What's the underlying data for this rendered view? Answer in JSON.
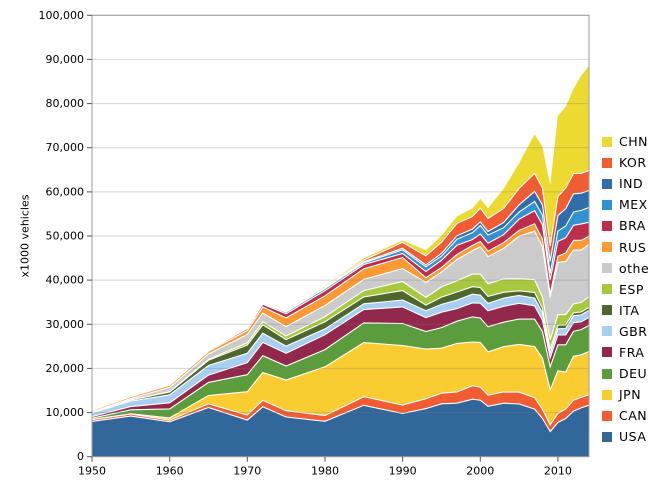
{
  "figure": {
    "background": "#ffffff"
  },
  "chart_data": {
    "type": "area",
    "stacked": true,
    "title": "",
    "xlabel": "",
    "ylabel": "x1000 vehicles",
    "xlim": [
      1950,
      2014
    ],
    "ylim": [
      0,
      100000
    ],
    "ytick_step": 10000,
    "xticks": [
      1950,
      1960,
      1970,
      1980,
      1990,
      2000,
      2010
    ],
    "grid": true,
    "legend_position": "right",
    "legend": [
      "CHN",
      "KOR",
      "IND",
      "MEX",
      "BRA",
      "RUS",
      "others",
      "ESP",
      "ITA",
      "GBR",
      "FRA",
      "DEU",
      "JPN",
      "CAN",
      "USA"
    ],
    "x": [
      1950,
      1955,
      1960,
      1965,
      1970,
      1972,
      1975,
      1980,
      1985,
      1990,
      1993,
      1995,
      1997,
      1999,
      2000,
      2001,
      2003,
      2005,
      2007,
      2008,
      2009,
      2010,
      2011,
      2012,
      2013,
      2014
    ],
    "series": [
      {
        "name": "USA",
        "color": "#31679B",
        "values": [
          8006,
          9204,
          7905,
          11138,
          8284,
          11311,
          8987,
          8010,
          11653,
          9783,
          10898,
          11985,
          12119,
          13025,
          12800,
          11425,
          12115,
          11947,
          10781,
          8672,
          5709,
          7743,
          8662,
          10336,
          11066,
          11661
        ]
      },
      {
        "name": "CAN",
        "color": "#F25C33",
        "values": [
          388,
          452,
          398,
          847,
          1160,
          1470,
          1442,
          1324,
          1933,
          1928,
          2246,
          2408,
          2571,
          3059,
          2962,
          2533,
          2553,
          2688,
          2578,
          2082,
          1490,
          2068,
          2135,
          2463,
          2380,
          2394
        ]
      },
      {
        "name": "JPN",
        "color": "#F9CD32",
        "values": [
          32,
          69,
          482,
          1876,
          5289,
          6294,
          6942,
          11043,
          12271,
          13487,
          11228,
          10196,
          10975,
          9895,
          10141,
          9777,
          10286,
          10800,
          11596,
          11576,
          7934,
          9629,
          8399,
          9943,
          9630,
          9775
        ]
      },
      {
        "name": "DEU",
        "color": "#5B9C3D",
        "values": [
          306,
          909,
          2055,
          2976,
          3842,
          3800,
          3186,
          3879,
          4446,
          4977,
          3990,
          4667,
          5023,
          5687,
          5527,
          5692,
          5507,
          5758,
          6213,
          6046,
          5210,
          5906,
          6147,
          5649,
          5718,
          5908
        ]
      },
      {
        "name": "FRA",
        "color": "#92294C",
        "values": [
          357,
          725,
          1369,
          1642,
          2750,
          3010,
          2861,
          3378,
          3016,
          3769,
          3156,
          3475,
          2858,
          3180,
          3348,
          3628,
          3620,
          3549,
          3019,
          2569,
          2048,
          2228,
          2243,
          1968,
          1740,
          1821
        ]
      },
      {
        "name": "GBR",
        "color": "#A8CEF0",
        "values": [
          784,
          1237,
          1811,
          2177,
          2098,
          2100,
          1648,
          1313,
          1314,
          1566,
          1569,
          1765,
          1936,
          1973,
          1814,
          1685,
          1846,
          1803,
          1750,
          1650,
          1090,
          1393,
          1464,
          1577,
          1598,
          1599
        ]
      },
      {
        "name": "ITA",
        "color": "#4F672D",
        "values": [
          128,
          269,
          645,
          1176,
          1854,
          1900,
          1459,
          1612,
          1573,
          2121,
          1267,
          1667,
          1828,
          1704,
          1738,
          1580,
          1322,
          1038,
          1284,
          1024,
          843,
          838,
          790,
          672,
          658,
          698
        ]
      },
      {
        "name": "ESP",
        "color": "#A8C93F",
        "values": [
          3,
          14,
          58,
          229,
          536,
          700,
          814,
          1182,
          1418,
          2053,
          1768,
          2334,
          2562,
          2852,
          3033,
          2850,
          3030,
          2752,
          2890,
          2542,
          2170,
          2388,
          2354,
          1979,
          2163,
          2403
        ]
      },
      {
        "name": "others",
        "color": "#CBCBCB",
        "values": [
          175,
          300,
          979,
          1196,
          1889,
          1950,
          2132,
          2512,
          2545,
          2938,
          3345,
          3340,
          4804,
          5315,
          6202,
          6131,
          6918,
          9592,
          11000,
          11400,
          9600,
          11800,
          12000,
          12200,
          11900,
          11800
        ]
      },
      {
        "name": "RUS",
        "color": "#FB9A32",
        "values": [
          363,
          445,
          524,
          616,
          916,
          1400,
          1964,
          2199,
          2400,
          2500,
          1090,
          1030,
          1160,
          1170,
          1206,
          1251,
          1280,
          1355,
          1660,
          1790,
          725,
          1403,
          1988,
          2233,
          2175,
          1895
        ]
      },
      {
        "name": "BRA",
        "color": "#BE2D4C",
        "values": [
          0,
          1,
          133,
          185,
          416,
          620,
          930,
          1165,
          967,
          915,
          1391,
          1629,
          2070,
          1357,
          1682,
          1817,
          1828,
          2530,
          2977,
          3216,
          3183,
          3382,
          3406,
          3403,
          3712,
          3146
        ]
      },
      {
        "name": "MEX",
        "color": "#3292D2",
        "values": [
          22,
          34,
          50,
          97,
          193,
          230,
          361,
          490,
          398,
          821,
          1080,
          935,
          1360,
          1550,
          1936,
          1841,
          1575,
          1624,
          2095,
          2168,
          1561,
          2342,
          2681,
          3002,
          3055,
          3365
        ]
      },
      {
        "name": "IND",
        "color": "#2F6DAD",
        "values": [
          15,
          25,
          55,
          70,
          76,
          90,
          95,
          113,
          230,
          364,
          410,
          636,
          770,
          818,
          801,
          815,
          1161,
          1639,
          2254,
          2332,
          2642,
          3557,
          3927,
          4145,
          3898,
          3840
        ]
      },
      {
        "name": "KOR",
        "color": "#F25C33",
        "values": [
          0,
          0,
          1,
          1,
          29,
          20,
          37,
          123,
          378,
          1322,
          2050,
          2526,
          2818,
          2843,
          3115,
          2946,
          3178,
          3699,
          4086,
          3827,
          3513,
          4272,
          4657,
          4562,
          4521,
          4525
        ]
      },
      {
        "name": "CHN",
        "color": "#EDDA31",
        "values": [
          0,
          1,
          23,
          41,
          87,
          100,
          140,
          222,
          437,
          470,
          1297,
          1453,
          1580,
          1830,
          2069,
          2334,
          4444,
          5708,
          8882,
          9299,
          13791,
          18265,
          18419,
          19272,
          22117,
          23723
        ]
      }
    ]
  }
}
